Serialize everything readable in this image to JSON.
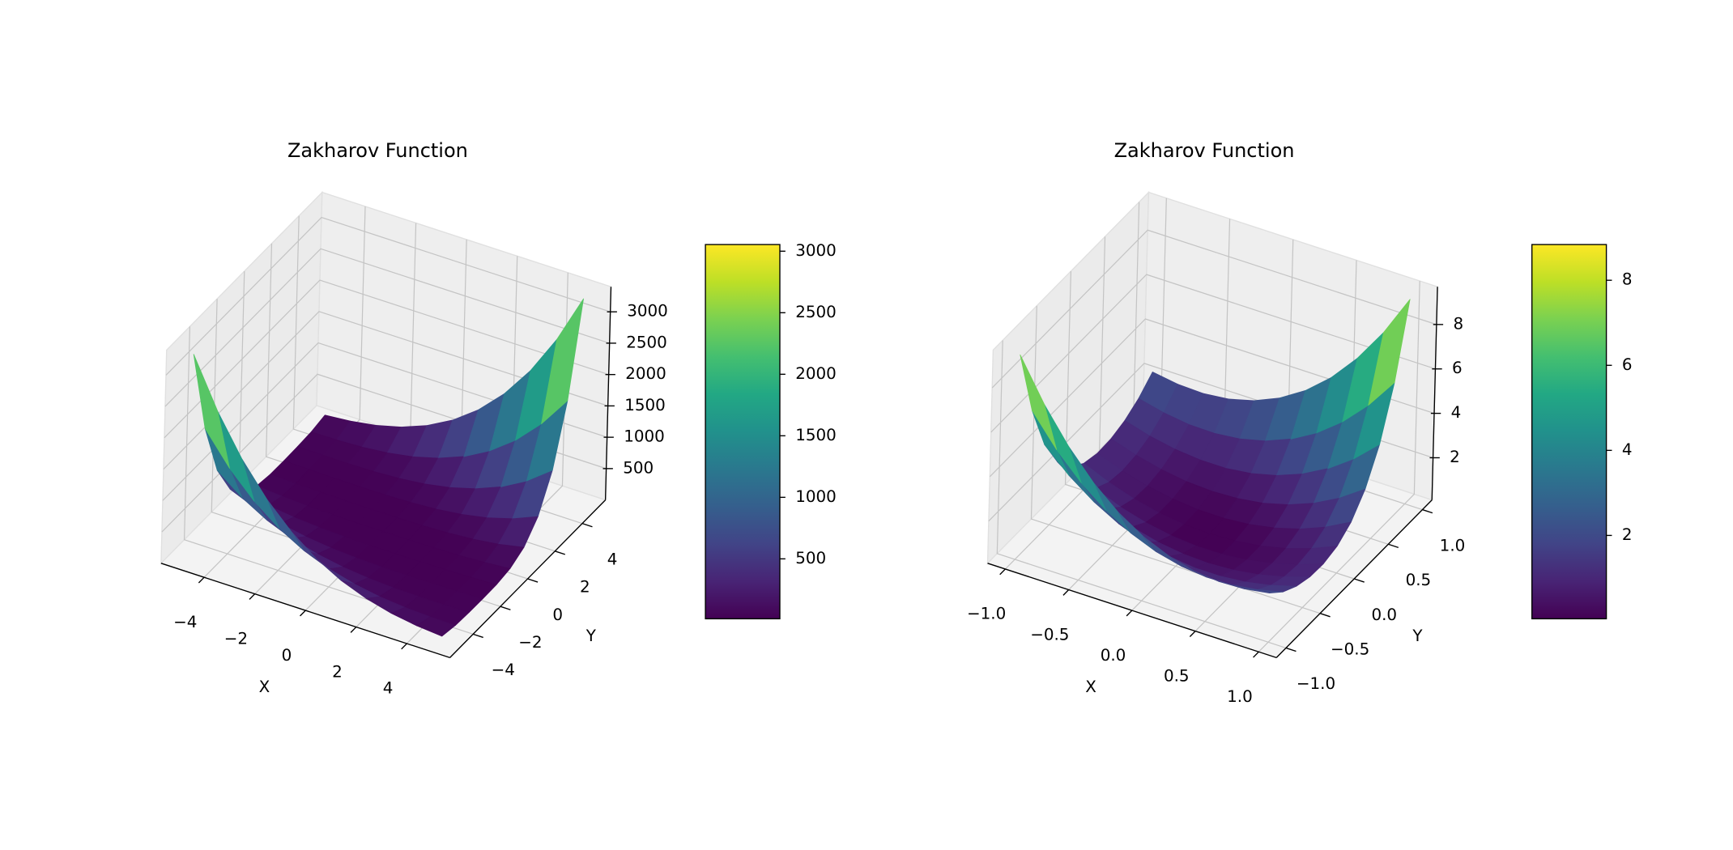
{
  "chart_data": [
    {
      "type": "surface",
      "title": "Zakharov Function",
      "x_label": "X",
      "y_label": "Y",
      "colormap": "viridis",
      "grid": true,
      "x": [
        -5,
        -4,
        -3,
        -2,
        -1,
        0,
        1,
        2,
        3,
        4,
        5
      ],
      "y": [
        -5,
        -4,
        -3,
        -2,
        -1,
        0,
        1,
        2,
        3,
        4,
        5
      ],
      "z": [
        [
          3270,
          2491,
          1861,
          1361,
          971,
          675,
          456,
          301,
          196,
          131,
          95
        ],
        [
          1868,
          1364,
          970,
          670,
          447,
          288,
          179,
          110,
          70,
          52,
          48
        ],
        [
          979,
          675,
          448,
          285,
          172,
          99,
          55,
          33,
          25,
          27,
          34
        ],
        [
          459,
          292,
          175,
          98,
          50,
          24,
          12,
          10,
          13,
          20,
          29
        ],
        [
          188,
          107,
          55,
          25,
          9,
          3,
          2,
          5,
          10,
          19,
          33
        ],
        [
          70,
          36,
          16,
          6,
          1,
          0,
          1,
          6,
          16,
          36,
          70
        ],
        [
          33,
          19,
          10,
          5,
          2,
          3,
          9,
          25,
          55,
          107,
          188
        ],
        [
          29,
          20,
          13,
          10,
          12,
          24,
          50,
          98,
          175,
          292,
          459
        ],
        [
          34,
          27,
          25,
          33,
          55,
          99,
          172,
          285,
          448,
          675,
          979
        ],
        [
          48,
          52,
          70,
          110,
          179,
          288,
          447,
          670,
          970,
          1364,
          1868
        ],
        [
          95,
          131,
          196,
          301,
          456,
          675,
          971,
          1361,
          1861,
          2491,
          3270
        ]
      ],
      "xlim": [
        -5.7,
        5.7
      ],
      "ylim": [
        -5.7,
        5.7
      ],
      "zlim": [
        0,
        3400
      ],
      "xticks": [
        {
          "value": -4,
          "label": "−4"
        },
        {
          "value": -2,
          "label": "−2"
        },
        0,
        2,
        4
      ],
      "yticks": [
        {
          "value": -4,
          "label": "−4"
        },
        {
          "value": -2,
          "label": "−2"
        },
        0,
        2,
        4
      ],
      "zticks": [
        500,
        1000,
        1500,
        2000,
        2500,
        3000
      ],
      "clim": [
        13,
        3054
      ],
      "cticks": [
        500,
        1000,
        1500,
        2000,
        2500,
        3000
      ]
    },
    {
      "type": "surface",
      "title": "Zakharov Function",
      "x_label": "X",
      "y_label": "Y",
      "colormap": "viridis",
      "grid": true,
      "x": [
        -1,
        -0.8,
        -0.6,
        -0.4,
        -0.2,
        0,
        0.2,
        0.4,
        0.6,
        0.8,
        1
      ],
      "y": [
        -1,
        -0.8,
        -0.6,
        -0.4,
        -0.2,
        0,
        0.2,
        0.4,
        0.6,
        0.8,
        1
      ],
      "z": [
        [
          9.31,
          7.44,
          5.91,
          4.67,
          3.71,
          3.0,
          2.51,
          2.21,
          2.09,
          2.13,
          2.31
        ],
        [
          6.19,
          4.79,
          3.67,
          2.8,
          2.15,
          1.69,
          1.41,
          1.29,
          1.31,
          1.47,
          1.74
        ],
        [
          4.03,
          3.0,
          2.19,
          1.57,
          1.13,
          0.85,
          0.71,
          0.71,
          0.82,
          1.04,
          1.37
        ],
        [
          2.63,
          1.85,
          1.25,
          0.81,
          0.51,
          0.35,
          0.3,
          0.36,
          0.53,
          0.8,
          1.17
        ],
        [
          1.77,
          1.17,
          0.71,
          0.39,
          0.18,
          0.08,
          0.09,
          0.2,
          0.41,
          0.72,
          1.14
        ],
        [
          1.31,
          0.83,
          0.46,
          0.2,
          0.05,
          0,
          0.05,
          0.2,
          0.46,
          0.83,
          1.31
        ],
        [
          1.14,
          0.72,
          0.41,
          0.2,
          0.09,
          0.08,
          0.18,
          0.39,
          0.71,
          1.17,
          1.77
        ],
        [
          1.17,
          0.8,
          0.53,
          0.36,
          0.3,
          0.35,
          0.51,
          0.81,
          1.25,
          1.85,
          2.63
        ],
        [
          1.37,
          1.04,
          0.82,
          0.71,
          0.71,
          0.85,
          1.13,
          1.57,
          2.19,
          3.0,
          4.03
        ],
        [
          1.74,
          1.47,
          1.31,
          1.29,
          1.41,
          1.69,
          2.15,
          2.8,
          3.67,
          4.79,
          6.19
        ],
        [
          2.31,
          2.13,
          2.09,
          2.21,
          2.51,
          3.0,
          3.71,
          4.67,
          5.91,
          7.44,
          9.31
        ]
      ],
      "xlim": [
        -1.14,
        1.14
      ],
      "ylim": [
        -1.14,
        1.14
      ],
      "zlim": [
        0.1,
        9.7
      ],
      "xticks": [
        {
          "value": -1,
          "label": "−1.0"
        },
        {
          "value": -0.5,
          "label": "−0.5"
        },
        {
          "value": 0,
          "label": "0.0"
        },
        0.5,
        {
          "value": 1,
          "label": "1.0"
        }
      ],
      "yticks": [
        {
          "value": -1,
          "label": "−1.0"
        },
        {
          "value": -0.5,
          "label": "−0.5"
        },
        {
          "value": 0,
          "label": "0.0"
        },
        0.5,
        {
          "value": 1,
          "label": "1.0"
        }
      ],
      "zticks": [
        2,
        4,
        6,
        8
      ],
      "clim": [
        0.04,
        8.84
      ],
      "cticks": [
        2,
        4,
        6,
        8
      ]
    }
  ]
}
